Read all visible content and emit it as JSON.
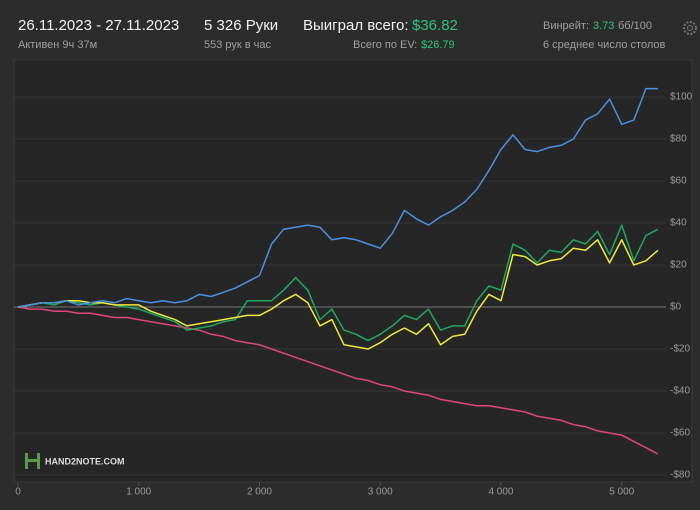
{
  "header": {
    "dates": "26.11.2023 - 27.11.2023",
    "active": "Активен 9ч 37м",
    "hands": "5 326 Руки",
    "hands_per_hour": "553 рук в час",
    "won_label": "Выиграл всего:",
    "won_value": "$36.82",
    "ev_label": "Всего по EV:",
    "ev_value": "$26.79",
    "winrate_label": "Винрейт:",
    "winrate_value": "3.73",
    "winrate_unit": "бб/100",
    "tables": "6 среднее число столов",
    "logo": "HAND2NOTE.COM"
  },
  "chart_data": {
    "type": "line",
    "grid": true,
    "xlim": [
      0,
      5400
    ],
    "ylim": [
      -82,
      115
    ],
    "xticks": [
      0,
      {
        "value": 1000,
        "label": "1 000"
      },
      {
        "value": 2000,
        "label": "2 000"
      },
      {
        "value": 3000,
        "label": "3 000"
      },
      {
        "value": 4000,
        "label": "4 000"
      },
      {
        "value": 5000,
        "label": "5 000"
      }
    ],
    "yticks": [
      {
        "value": 100,
        "label": "$100"
      },
      {
        "value": 80,
        "label": "$80"
      },
      {
        "value": 60,
        "label": "$60"
      },
      {
        "value": 40,
        "label": "$40"
      },
      {
        "value": 20,
        "label": "$20"
      },
      {
        "value": 0,
        "label": "$0"
      },
      {
        "value": -20,
        "label": "-$20"
      },
      {
        "value": -40,
        "label": "-$40"
      },
      {
        "value": -60,
        "label": "-$60"
      },
      {
        "value": -80,
        "label": "-$80"
      }
    ],
    "x": [
      0,
      100,
      200,
      300,
      400,
      500,
      600,
      700,
      800,
      900,
      1000,
      1100,
      1200,
      1300,
      1400,
      1500,
      1600,
      1700,
      1800,
      1900,
      2000,
      2100,
      2200,
      2300,
      2400,
      2500,
      2600,
      2700,
      2800,
      2900,
      3000,
      3100,
      3200,
      3300,
      3400,
      3500,
      3600,
      3700,
      3800,
      3900,
      4000,
      4100,
      4200,
      4300,
      4400,
      4500,
      4600,
      4700,
      4800,
      4900,
      5000,
      5100,
      5200,
      5300
    ],
    "series": [
      {
        "color": "#e0457b",
        "values": [
          0,
          -1,
          -1,
          -2,
          -2,
          -3,
          -3,
          -4,
          -5,
          -5,
          -6,
          -7,
          -8,
          -9,
          -10,
          -11,
          -13,
          -14,
          -16,
          -17,
          -18,
          -20,
          -22,
          -24,
          -26,
          -28,
          -30,
          -32,
          -34,
          -35,
          -37,
          -38,
          -40,
          -41,
          -42,
          -44,
          -45,
          -46,
          -47,
          -47,
          -48,
          -49,
          -50,
          -52,
          -53,
          -54,
          -56,
          -57,
          -59,
          -60,
          -61,
          -64,
          -67,
          -70
        ]
      },
      {
        "color": "#1fa862",
        "values": [
          0,
          1,
          2,
          1,
          3,
          2,
          1,
          2,
          1,
          0,
          -1,
          -3,
          -5,
          -7,
          -11,
          -10,
          -9,
          -7,
          -6,
          3,
          3,
          3,
          8,
          14,
          8,
          -6,
          -1,
          -11,
          -13,
          -16,
          -13,
          -9,
          -4,
          -6,
          -1,
          -11,
          -9,
          -9,
          3,
          10,
          8,
          30,
          27,
          21,
          27,
          26,
          32,
          30,
          36,
          25,
          39,
          22,
          34,
          37
        ]
      },
      {
        "color": "#f0ea3a",
        "values": [
          0,
          1,
          2,
          2,
          3,
          3,
          2,
          2,
          1,
          1,
          1,
          -2,
          -4,
          -6,
          -9,
          -8,
          -7,
          -6,
          -5,
          -4,
          -4,
          -1,
          3,
          6,
          2,
          -9,
          -6,
          -18,
          -19,
          -20,
          -17,
          -13,
          -10,
          -13,
          -8,
          -18,
          -14,
          -13,
          -2,
          6,
          3,
          25,
          24,
          20,
          22,
          23,
          28,
          27,
          32,
          21,
          32,
          20,
          22,
          27
        ]
      },
      {
        "color": "#4a90e2",
        "values": [
          0,
          1,
          2,
          2,
          3,
          1,
          2,
          3,
          2,
          4,
          3,
          2,
          3,
          2,
          3,
          6,
          5,
          7,
          9,
          12,
          15,
          30,
          37,
          38,
          39,
          38,
          32,
          33,
          32,
          30,
          28,
          35,
          46,
          42,
          39,
          43,
          46,
          50,
          56,
          65,
          75,
          82,
          75,
          74,
          76,
          77,
          80,
          89,
          92,
          99,
          87,
          89,
          104,
          104
        ]
      }
    ]
  }
}
